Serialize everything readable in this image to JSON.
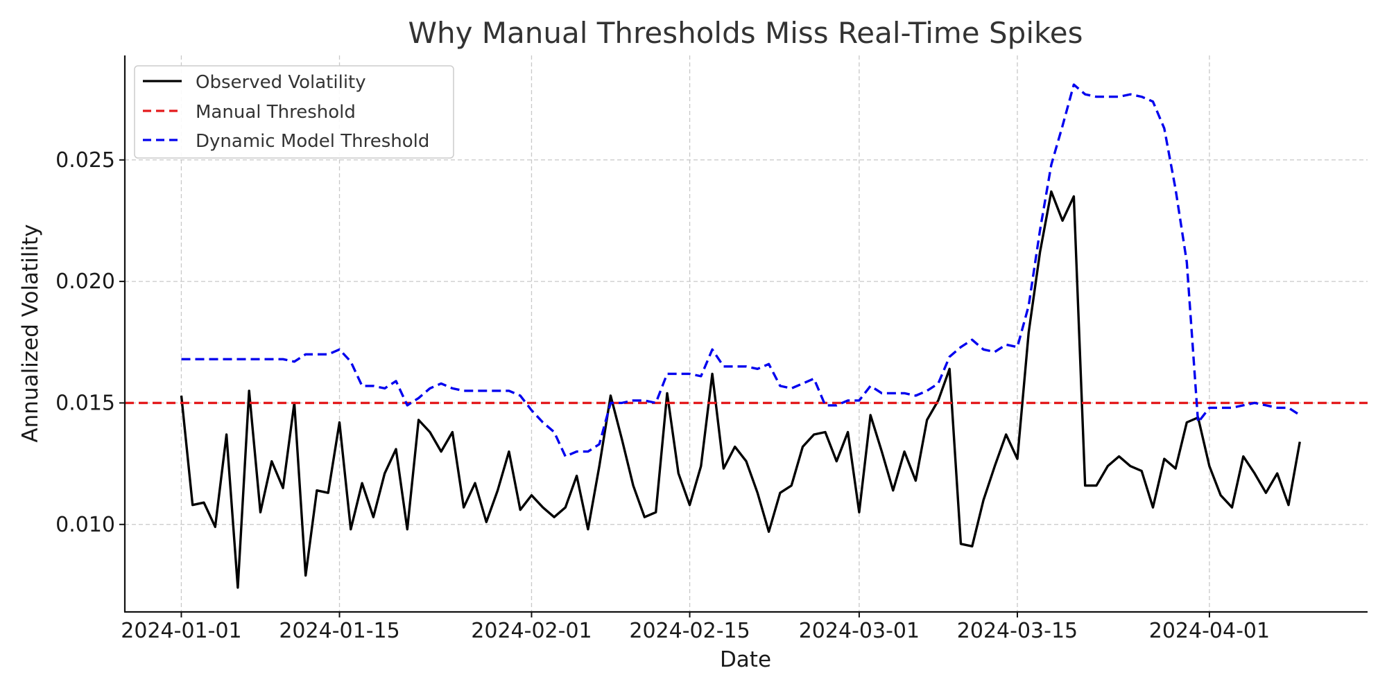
{
  "chart_data": {
    "type": "line",
    "title": "Why Manual Thresholds Miss Real-Time Spikes",
    "xlabel": "Date",
    "ylabel": "Annualized Volatility",
    "xlim": [
      "2023-12-27",
      "2024-04-15"
    ],
    "ylim": [
      0.0064,
      0.0293
    ],
    "x_ticks": [
      "2024-01-01",
      "2024-01-15",
      "2024-02-01",
      "2024-02-15",
      "2024-03-01",
      "2024-03-15",
      "2024-04-01"
    ],
    "y_ticks": [
      0.01,
      0.015,
      0.02,
      0.025
    ],
    "y_tick_labels": [
      "0.010",
      "0.015",
      "0.020",
      "0.025"
    ],
    "grid": true,
    "legend_position": "top-left",
    "x_start": "2024-01-01",
    "x_step_days": 1,
    "series": [
      {
        "name": "Observed Volatility",
        "color": "#000000",
        "style": "solid",
        "values": [
          0.0153,
          0.0108,
          0.0109,
          0.0099,
          0.0137,
          0.0074,
          0.0155,
          0.0105,
          0.0126,
          0.0115,
          0.015,
          0.0079,
          0.0114,
          0.0113,
          0.0142,
          0.0098,
          0.0117,
          0.0103,
          0.0121,
          0.0131,
          0.0098,
          0.0143,
          0.0138,
          0.013,
          0.0138,
          0.0107,
          0.0117,
          0.0101,
          0.0114,
          0.013,
          0.0106,
          0.0112,
          0.0107,
          0.0103,
          0.0107,
          0.012,
          0.0098,
          0.0124,
          0.0153,
          0.0135,
          0.0116,
          0.0103,
          0.0105,
          0.0154,
          0.0121,
          0.0108,
          0.0124,
          0.0162,
          0.0123,
          0.0132,
          0.0126,
          0.0113,
          0.0097,
          0.0113,
          0.0116,
          0.0132,
          0.0137,
          0.0138,
          0.0126,
          0.0138,
          0.0105,
          0.0145,
          0.013,
          0.0114,
          0.013,
          0.0118,
          0.0143,
          0.0151,
          0.0164,
          0.0092,
          0.0091,
          0.011,
          0.0124,
          0.0137,
          0.0127,
          0.0179,
          0.0212,
          0.0237,
          0.0225,
          0.0235,
          0.0116,
          0.0116,
          0.0124,
          0.0128,
          0.0124,
          0.0122,
          0.0107,
          0.0127,
          0.0123,
          0.0142,
          0.0144,
          0.0124,
          0.0112,
          0.0107,
          0.0128,
          0.0121,
          0.0113,
          0.0121,
          0.0108,
          0.0134
        ]
      },
      {
        "name": "Manual Threshold",
        "color": "#e31a1c",
        "style": "dashed",
        "values": [
          0.015,
          0.015
        ]
      },
      {
        "name": "Dynamic Model Threshold",
        "color": "#0000ee",
        "style": "dashed",
        "values": [
          0.0168,
          0.0168,
          0.0168,
          0.0168,
          0.0168,
          0.0168,
          0.0168,
          0.0168,
          0.0168,
          0.0168,
          0.0167,
          0.017,
          0.017,
          0.017,
          0.0172,
          0.0167,
          0.0157,
          0.0157,
          0.0156,
          0.0159,
          0.0149,
          0.0152,
          0.0156,
          0.0158,
          0.0156,
          0.0155,
          0.0155,
          0.0155,
          0.0155,
          0.0155,
          0.0153,
          0.0147,
          0.0142,
          0.0138,
          0.0128,
          0.013,
          0.013,
          0.0133,
          0.015,
          0.015,
          0.0151,
          0.0151,
          0.015,
          0.0162,
          0.0162,
          0.0162,
          0.0161,
          0.0172,
          0.0165,
          0.0165,
          0.0165,
          0.0164,
          0.0166,
          0.0157,
          0.0156,
          0.0158,
          0.016,
          0.0149,
          0.0149,
          0.0151,
          0.0151,
          0.0157,
          0.0154,
          0.0154,
          0.0154,
          0.0153,
          0.0155,
          0.0158,
          0.0169,
          0.0173,
          0.0176,
          0.0172,
          0.0171,
          0.0174,
          0.0173,
          0.019,
          0.0221,
          0.0248,
          0.0264,
          0.0281,
          0.0277,
          0.0276,
          0.0276,
          0.0276,
          0.0277,
          0.0276,
          0.0274,
          0.0263,
          0.0238,
          0.0208,
          0.0142,
          0.0148,
          0.0148,
          0.0148,
          0.0149,
          0.015,
          0.0149,
          0.0148,
          0.0148,
          0.0145
        ]
      }
    ]
  }
}
